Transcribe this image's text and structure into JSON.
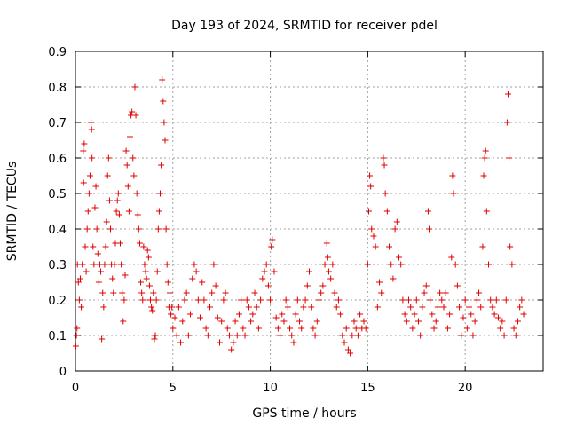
{
  "chart_data": {
    "type": "scatter",
    "title": "Day 193 of 2024, SRMTID for receiver pdel",
    "xlabel": "GPS time / hours",
    "ylabel": "SRMTID / TECUs",
    "xlim": [
      0,
      24
    ],
    "ylim": [
      0,
      0.9
    ],
    "xticks": [
      0,
      5,
      10,
      15,
      20
    ],
    "yticks": [
      0,
      0.1,
      0.2,
      0.3,
      0.4,
      0.5,
      0.6,
      0.7,
      0.8,
      0.9
    ],
    "xtick_labels": [
      "0",
      "5",
      "10",
      "15",
      "20"
    ],
    "ytick_labels": [
      "0",
      "0.1",
      "0.2",
      "0.3",
      "0.4",
      "0.5",
      "0.6",
      "0.7",
      "0.8",
      "0.9"
    ],
    "grid": true,
    "marker": "+",
    "color": "#e00000",
    "series": [
      {
        "name": "SRMTID",
        "points": [
          [
            0.02,
            0.07
          ],
          [
            0.05,
            0.1
          ],
          [
            0.08,
            0.12
          ],
          [
            0.1,
            0.3
          ],
          [
            0.15,
            0.25
          ],
          [
            0.2,
            0.2
          ],
          [
            0.25,
            0.26
          ],
          [
            0.3,
            0.18
          ],
          [
            0.35,
            0.3
          ],
          [
            0.4,
            0.62
          ],
          [
            0.42,
            0.53
          ],
          [
            0.45,
            0.64
          ],
          [
            0.5,
            0.35
          ],
          [
            0.55,
            0.28
          ],
          [
            0.6,
            0.4
          ],
          [
            0.65,
            0.45
          ],
          [
            0.7,
            0.5
          ],
          [
            0.75,
            0.55
          ],
          [
            0.8,
            0.7
          ],
          [
            0.83,
            0.68
          ],
          [
            0.85,
            0.6
          ],
          [
            0.9,
            0.35
          ],
          [
            0.95,
            0.3
          ],
          [
            1.0,
            0.46
          ],
          [
            1.05,
            0.52
          ],
          [
            1.1,
            0.4
          ],
          [
            1.15,
            0.33
          ],
          [
            1.2,
            0.25
          ],
          [
            1.25,
            0.3
          ],
          [
            1.3,
            0.28
          ],
          [
            1.35,
            0.09
          ],
          [
            1.4,
            0.22
          ],
          [
            1.45,
            0.18
          ],
          [
            1.5,
            0.3
          ],
          [
            1.55,
            0.35
          ],
          [
            1.6,
            0.42
          ],
          [
            1.65,
            0.55
          ],
          [
            1.7,
            0.6
          ],
          [
            1.75,
            0.48
          ],
          [
            1.8,
            0.4
          ],
          [
            1.85,
            0.3
          ],
          [
            1.9,
            0.26
          ],
          [
            1.95,
            0.22
          ],
          [
            2.0,
            0.3
          ],
          [
            2.05,
            0.36
          ],
          [
            2.1,
            0.45
          ],
          [
            2.15,
            0.48
          ],
          [
            2.2,
            0.5
          ],
          [
            2.25,
            0.44
          ],
          [
            2.3,
            0.36
          ],
          [
            2.35,
            0.3
          ],
          [
            2.4,
            0.22
          ],
          [
            2.45,
            0.14
          ],
          [
            2.5,
            0.2
          ],
          [
            2.55,
            0.27
          ],
          [
            2.6,
            0.62
          ],
          [
            2.65,
            0.58
          ],
          [
            2.7,
            0.52
          ],
          [
            2.75,
            0.45
          ],
          [
            2.8,
            0.66
          ],
          [
            2.85,
            0.72
          ],
          [
            2.9,
            0.73
          ],
          [
            2.95,
            0.6
          ],
          [
            3.0,
            0.55
          ],
          [
            3.05,
            0.8
          ],
          [
            3.1,
            0.72
          ],
          [
            3.15,
            0.5
          ],
          [
            3.2,
            0.44
          ],
          [
            3.25,
            0.4
          ],
          [
            3.3,
            0.36
          ],
          [
            3.35,
            0.25
          ],
          [
            3.4,
            0.22
          ],
          [
            3.45,
            0.2
          ],
          [
            3.5,
            0.35
          ],
          [
            3.55,
            0.3
          ],
          [
            3.6,
            0.28
          ],
          [
            3.65,
            0.26
          ],
          [
            3.7,
            0.34
          ],
          [
            3.75,
            0.32
          ],
          [
            3.8,
            0.24
          ],
          [
            3.85,
            0.2
          ],
          [
            3.9,
            0.18
          ],
          [
            3.95,
            0.17
          ],
          [
            4.0,
            0.22
          ],
          [
            4.05,
            0.09
          ],
          [
            4.1,
            0.1
          ],
          [
            4.15,
            0.2
          ],
          [
            4.2,
            0.28
          ],
          [
            4.25,
            0.4
          ],
          [
            4.3,
            0.45
          ],
          [
            4.35,
            0.5
          ],
          [
            4.4,
            0.58
          ],
          [
            4.45,
            0.82
          ],
          [
            4.5,
            0.76
          ],
          [
            4.55,
            0.7
          ],
          [
            4.6,
            0.65
          ],
          [
            4.65,
            0.4
          ],
          [
            4.7,
            0.3
          ],
          [
            4.75,
            0.25
          ],
          [
            4.8,
            0.18
          ],
          [
            4.85,
            0.22
          ],
          [
            4.9,
            0.16
          ],
          [
            4.95,
            0.18
          ],
          [
            5.0,
            0.12
          ],
          [
            5.1,
            0.15
          ],
          [
            5.2,
            0.1
          ],
          [
            5.3,
            0.18
          ],
          [
            5.4,
            0.08
          ],
          [
            5.5,
            0.14
          ],
          [
            5.6,
            0.2
          ],
          [
            5.7,
            0.22
          ],
          [
            5.8,
            0.1
          ],
          [
            5.9,
            0.16
          ],
          [
            6.0,
            0.26
          ],
          [
            6.1,
            0.3
          ],
          [
            6.2,
            0.28
          ],
          [
            6.3,
            0.2
          ],
          [
            6.4,
            0.15
          ],
          [
            6.5,
            0.25
          ],
          [
            6.6,
            0.2
          ],
          [
            6.7,
            0.12
          ],
          [
            6.8,
            0.1
          ],
          [
            6.9,
            0.18
          ],
          [
            7.0,
            0.22
          ],
          [
            7.1,
            0.3
          ],
          [
            7.2,
            0.24
          ],
          [
            7.3,
            0.15
          ],
          [
            7.4,
            0.08
          ],
          [
            7.5,
            0.14
          ],
          [
            7.6,
            0.2
          ],
          [
            7.7,
            0.22
          ],
          [
            7.8,
            0.12
          ],
          [
            7.9,
            0.1
          ],
          [
            8.0,
            0.06
          ],
          [
            8.1,
            0.08
          ],
          [
            8.2,
            0.14
          ],
          [
            8.3,
            0.1
          ],
          [
            8.4,
            0.16
          ],
          [
            8.5,
            0.2
          ],
          [
            8.6,
            0.12
          ],
          [
            8.7,
            0.1
          ],
          [
            8.8,
            0.2
          ],
          [
            8.9,
            0.18
          ],
          [
            9.0,
            0.14
          ],
          [
            9.1,
            0.16
          ],
          [
            9.2,
            0.22
          ],
          [
            9.3,
            0.18
          ],
          [
            9.4,
            0.12
          ],
          [
            9.5,
            0.2
          ],
          [
            9.6,
            0.26
          ],
          [
            9.7,
            0.28
          ],
          [
            9.8,
            0.3
          ],
          [
            9.9,
            0.24
          ],
          [
            10.0,
            0.2
          ],
          [
            10.05,
            0.35
          ],
          [
            10.1,
            0.37
          ],
          [
            10.2,
            0.28
          ],
          [
            10.3,
            0.15
          ],
          [
            10.4,
            0.12
          ],
          [
            10.5,
            0.1
          ],
          [
            10.6,
            0.16
          ],
          [
            10.7,
            0.14
          ],
          [
            10.8,
            0.2
          ],
          [
            10.9,
            0.18
          ],
          [
            11.0,
            0.12
          ],
          [
            11.1,
            0.1
          ],
          [
            11.2,
            0.08
          ],
          [
            11.3,
            0.16
          ],
          [
            11.4,
            0.2
          ],
          [
            11.5,
            0.14
          ],
          [
            11.6,
            0.12
          ],
          [
            11.7,
            0.18
          ],
          [
            11.8,
            0.2
          ],
          [
            11.9,
            0.24
          ],
          [
            12.0,
            0.28
          ],
          [
            12.1,
            0.18
          ],
          [
            12.2,
            0.12
          ],
          [
            12.3,
            0.1
          ],
          [
            12.4,
            0.14
          ],
          [
            12.5,
            0.2
          ],
          [
            12.6,
            0.22
          ],
          [
            12.7,
            0.24
          ],
          [
            12.8,
            0.3
          ],
          [
            12.9,
            0.36
          ],
          [
            12.95,
            0.32
          ],
          [
            13.0,
            0.28
          ],
          [
            13.1,
            0.26
          ],
          [
            13.2,
            0.3
          ],
          [
            13.3,
            0.22
          ],
          [
            13.4,
            0.18
          ],
          [
            13.5,
            0.2
          ],
          [
            13.6,
            0.16
          ],
          [
            13.7,
            0.1
          ],
          [
            13.8,
            0.08
          ],
          [
            13.9,
            0.12
          ],
          [
            14.0,
            0.06
          ],
          [
            14.1,
            0.05
          ],
          [
            14.2,
            0.1
          ],
          [
            14.3,
            0.14
          ],
          [
            14.4,
            0.12
          ],
          [
            14.5,
            0.1
          ],
          [
            14.6,
            0.16
          ],
          [
            14.7,
            0.12
          ],
          [
            14.8,
            0.14
          ],
          [
            14.9,
            0.12
          ],
          [
            15.0,
            0.3
          ],
          [
            15.05,
            0.45
          ],
          [
            15.1,
            0.55
          ],
          [
            15.15,
            0.52
          ],
          [
            15.2,
            0.4
          ],
          [
            15.3,
            0.38
          ],
          [
            15.4,
            0.35
          ],
          [
            15.5,
            0.18
          ],
          [
            15.6,
            0.25
          ],
          [
            15.7,
            0.22
          ],
          [
            15.8,
            0.6
          ],
          [
            15.85,
            0.58
          ],
          [
            15.9,
            0.5
          ],
          [
            16.0,
            0.45
          ],
          [
            16.1,
            0.35
          ],
          [
            16.2,
            0.3
          ],
          [
            16.3,
            0.26
          ],
          [
            16.4,
            0.4
          ],
          [
            16.5,
            0.42
          ],
          [
            16.6,
            0.32
          ],
          [
            16.7,
            0.3
          ],
          [
            16.8,
            0.2
          ],
          [
            16.9,
            0.16
          ],
          [
            17.0,
            0.14
          ],
          [
            17.1,
            0.2
          ],
          [
            17.2,
            0.18
          ],
          [
            17.3,
            0.12
          ],
          [
            17.4,
            0.16
          ],
          [
            17.5,
            0.2
          ],
          [
            17.6,
            0.14
          ],
          [
            17.7,
            0.1
          ],
          [
            17.8,
            0.18
          ],
          [
            17.9,
            0.22
          ],
          [
            18.0,
            0.24
          ],
          [
            18.1,
            0.45
          ],
          [
            18.15,
            0.4
          ],
          [
            18.2,
            0.2
          ],
          [
            18.3,
            0.16
          ],
          [
            18.4,
            0.12
          ],
          [
            18.5,
            0.14
          ],
          [
            18.6,
            0.18
          ],
          [
            18.7,
            0.22
          ],
          [
            18.8,
            0.2
          ],
          [
            18.9,
            0.18
          ],
          [
            19.0,
            0.22
          ],
          [
            19.1,
            0.12
          ],
          [
            19.2,
            0.16
          ],
          [
            19.3,
            0.32
          ],
          [
            19.35,
            0.55
          ],
          [
            19.4,
            0.5
          ],
          [
            19.5,
            0.3
          ],
          [
            19.6,
            0.24
          ],
          [
            19.7,
            0.18
          ],
          [
            19.8,
            0.1
          ],
          [
            19.9,
            0.15
          ],
          [
            20.0,
            0.2
          ],
          [
            20.1,
            0.12
          ],
          [
            20.2,
            0.18
          ],
          [
            20.3,
            0.16
          ],
          [
            20.4,
            0.1
          ],
          [
            20.5,
            0.14
          ],
          [
            20.6,
            0.2
          ],
          [
            20.7,
            0.22
          ],
          [
            20.8,
            0.18
          ],
          [
            20.9,
            0.35
          ],
          [
            20.95,
            0.55
          ],
          [
            21.0,
            0.6
          ],
          [
            21.05,
            0.62
          ],
          [
            21.1,
            0.45
          ],
          [
            21.2,
            0.3
          ],
          [
            21.3,
            0.2
          ],
          [
            21.4,
            0.18
          ],
          [
            21.5,
            0.16
          ],
          [
            21.6,
            0.2
          ],
          [
            21.7,
            0.15
          ],
          [
            21.8,
            0.12
          ],
          [
            21.9,
            0.14
          ],
          [
            22.0,
            0.1
          ],
          [
            22.1,
            0.2
          ],
          [
            22.15,
            0.7
          ],
          [
            22.2,
            0.78
          ],
          [
            22.25,
            0.6
          ],
          [
            22.3,
            0.35
          ],
          [
            22.4,
            0.3
          ],
          [
            22.5,
            0.12
          ],
          [
            22.6,
            0.1
          ],
          [
            22.7,
            0.14
          ],
          [
            22.8,
            0.18
          ],
          [
            22.9,
            0.2
          ],
          [
            23.0,
            0.16
          ]
        ]
      }
    ]
  }
}
